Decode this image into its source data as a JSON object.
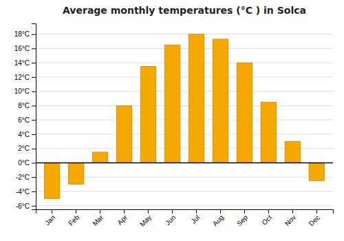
{
  "chart_data": {
    "type": "bar",
    "title": "Average monthly temperatures (°C ) in Solca",
    "categories": [
      "Jan",
      "Feb",
      "Mar",
      "Apr",
      "May",
      "Jun",
      "Jul",
      "Aug",
      "Sep",
      "Oct",
      "Nov",
      "Dec"
    ],
    "values": [
      -5.0,
      -3.0,
      1.5,
      8.0,
      13.5,
      16.5,
      18.0,
      17.3,
      14.0,
      8.5,
      3.0,
      -2.5
    ],
    "color": "#F5A800",
    "ylim": [
      -6.5,
      19.5
    ],
    "yticks": [
      {
        "value": -6,
        "label": "-6°C"
      },
      {
        "value": -4,
        "label": "-4°C"
      },
      {
        "value": -2,
        "label": "-2°C"
      },
      {
        "value": 0,
        "label": "0°C"
      },
      {
        "value": 2,
        "label": "2°C"
      },
      {
        "value": 4,
        "label": "4°C"
      },
      {
        "value": 6,
        "label": "6°C"
      },
      {
        "value": 8,
        "label": "8°C"
      },
      {
        "value": 10,
        "label": "10°C"
      },
      {
        "value": 12,
        "label": "12°C"
      },
      {
        "value": 14,
        "label": "14°C"
      },
      {
        "value": 16,
        "label": "16°C"
      },
      {
        "value": 18,
        "label": "18°C"
      }
    ],
    "grid": true
  }
}
